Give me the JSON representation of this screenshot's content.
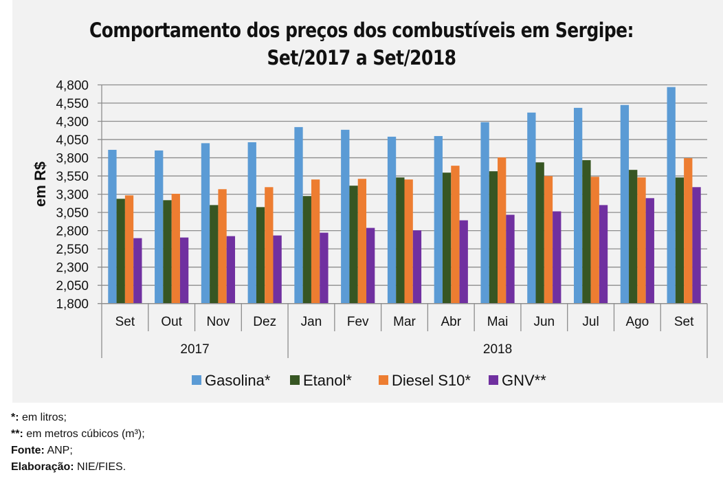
{
  "chart_data": {
    "type": "bar",
    "title": "Comportamento dos preços dos combustíveis em Sergipe:",
    "subtitle": "Set/2017 a Set/2018",
    "xlabel": "",
    "ylabel": "em R$",
    "ylim": [
      1800,
      4800
    ],
    "yticks": [
      1800,
      2050,
      2300,
      2550,
      2800,
      3050,
      3300,
      3550,
      3800,
      4050,
      4300,
      4550,
      4800
    ],
    "ytick_labels": [
      "1,800",
      "2,050",
      "2,300",
      "2,550",
      "2,800",
      "3,050",
      "3,300",
      "3,550",
      "3,800",
      "4,050",
      "4,300",
      "4,550",
      "4,800"
    ],
    "grid": true,
    "legend_position": "bottom",
    "categories": [
      "Set",
      "Out",
      "Nov",
      "Dez",
      "Jan",
      "Fev",
      "Mar",
      "Abr",
      "Mai",
      "Jun",
      "Jul",
      "Ago",
      "Set"
    ],
    "category_groups": [
      {
        "label": "2017",
        "count": 4
      },
      {
        "label": "2018",
        "count": 9
      }
    ],
    "series": [
      {
        "name": "Gasolina*",
        "color": "#5b9bd5",
        "values": [
          3909,
          3900,
          4000,
          4013,
          4221,
          4184,
          4089,
          4098,
          4288,
          4420,
          4485,
          4524,
          4770
        ]
      },
      {
        "name": "Etanol*",
        "color": "#375623",
        "values": [
          3237,
          3218,
          3151,
          3123,
          3275,
          3417,
          3530,
          3596,
          3615,
          3737,
          3767,
          3634,
          3530
        ]
      },
      {
        "name": "Diesel S10*",
        "color": "#ed7d31",
        "values": [
          3284,
          3306,
          3369,
          3397,
          3502,
          3511,
          3502,
          3691,
          3805,
          3549,
          3539,
          3530,
          3795
        ]
      },
      {
        "name": "GNV**",
        "color": "#7030a0",
        "values": [
          2697,
          2706,
          2725,
          2734,
          2772,
          2838,
          2804,
          2942,
          3018,
          3065,
          3151,
          3246,
          3397
        ]
      }
    ]
  },
  "notes": [
    {
      "bold": "*:",
      "text": " em litros;"
    },
    {
      "bold": "**:",
      "text": " em metros cúbicos (m³);"
    },
    {
      "bold": "Fonte:",
      "text": " ANP;"
    },
    {
      "bold": "Elaboração:",
      "text": " NIE/FIES."
    }
  ]
}
